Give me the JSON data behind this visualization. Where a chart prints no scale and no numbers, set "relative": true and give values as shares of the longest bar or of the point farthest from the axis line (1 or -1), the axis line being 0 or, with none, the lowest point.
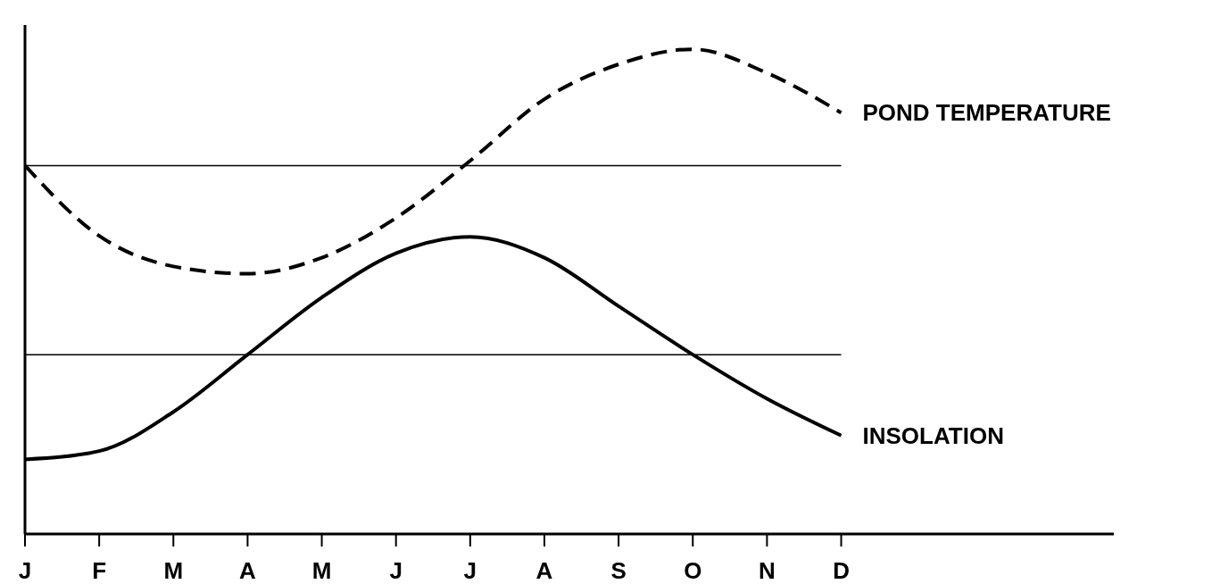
{
  "chart_data": {
    "type": "line",
    "relative": true,
    "categories": [
      "J",
      "F",
      "M",
      "A",
      "M",
      "J",
      "J",
      "A",
      "S",
      "O",
      "N",
      "D"
    ],
    "series": [
      {
        "name": "POND TEMPERATURE",
        "color": "#000000",
        "line_style": "dashed",
        "values": [
          0.76,
          0.615,
          0.552,
          0.537,
          0.57,
          0.652,
          0.77,
          0.897,
          0.969,
          1,
          0.951,
          0.869
        ]
      },
      {
        "name": "INSOLATION",
        "color": "#000000",
        "line_style": "solid",
        "values": [
          0.154,
          0.171,
          0.252,
          0.37,
          0.488,
          0.579,
          0.613,
          0.57,
          0.47,
          0.37,
          0.279,
          0.203
        ]
      }
    ],
    "ref_lines": [
      {
        "axis": "y",
        "value": 0.76,
        "color": "#000000"
      },
      {
        "axis": "y",
        "value": 0.37,
        "color": "#000000"
      }
    ],
    "marker": "none",
    "grid": false,
    "legend": false
  }
}
